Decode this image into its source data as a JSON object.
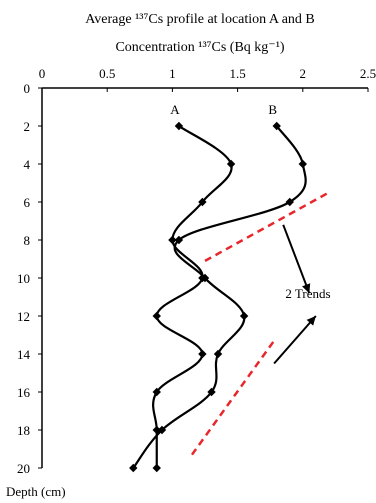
{
  "chart_data": {
    "type": "line",
    "title": "Average ¹³⁷Cs profile at location A and B",
    "xlabel": "Concentration ¹³⁷Cs (Bq kg⁻¹)",
    "ylabel": "Depth (cm)",
    "xlim": [
      0,
      2.5
    ],
    "ylim": [
      0,
      20
    ],
    "x_ticks": [
      "0",
      "0.5",
      "1",
      "1.5",
      "2",
      "2.5"
    ],
    "y_ticks": [
      "0",
      "2",
      "4",
      "6",
      "8",
      "10",
      "12",
      "14",
      "16",
      "18",
      "20"
    ],
    "x_tick_values": [
      0,
      0.5,
      1,
      1.5,
      2,
      2.5
    ],
    "y_tick_values": [
      0,
      2,
      4,
      6,
      8,
      10,
      12,
      14,
      16,
      18,
      20
    ],
    "x_axis_position": "top",
    "y_axis_inverted": true,
    "grid": false,
    "series": [
      {
        "name": "A",
        "color": "#000000",
        "points": [
          {
            "x": 1.05,
            "y": 2
          },
          {
            "x": 1.45,
            "y": 4
          },
          {
            "x": 1.23,
            "y": 6
          },
          {
            "x": 1.0,
            "y": 8
          },
          {
            "x": 1.23,
            "y": 10
          },
          {
            "x": 0.88,
            "y": 12
          },
          {
            "x": 1.23,
            "y": 14
          },
          {
            "x": 0.88,
            "y": 16
          },
          {
            "x": 0.88,
            "y": 18
          },
          {
            "x": 0.88,
            "y": 20
          }
        ]
      },
      {
        "name": "B",
        "color": "#000000",
        "points": [
          {
            "x": 1.8,
            "y": 2
          },
          {
            "x": 2.0,
            "y": 4
          },
          {
            "x": 1.9,
            "y": 6
          },
          {
            "x": 1.05,
            "y": 8
          },
          {
            "x": 1.25,
            "y": 10
          },
          {
            "x": 1.55,
            "y": 12
          },
          {
            "x": 1.35,
            "y": 14
          },
          {
            "x": 1.3,
            "y": 16
          },
          {
            "x": 0.92,
            "y": 18
          },
          {
            "x": 0.7,
            "y": 20
          }
        ]
      }
    ],
    "annotations": {
      "trend_text": "2 Trends",
      "trend_color": "#e8272c",
      "trend_lines": [
        {
          "x1": 1.25,
          "y1": 9.1,
          "x2": 2.2,
          "y2": 5.5
        },
        {
          "x1": 1.15,
          "y1": 19.3,
          "x2": 1.78,
          "y2": 13.3
        }
      ],
      "arrows": [
        {
          "x1": 1.85,
          "y1": 7.2,
          "x2": 2.05,
          "y2": 10.8
        },
        {
          "x1": 1.78,
          "y1": 14.5,
          "x2": 2.1,
          "y2": 12.0
        }
      ]
    }
  }
}
